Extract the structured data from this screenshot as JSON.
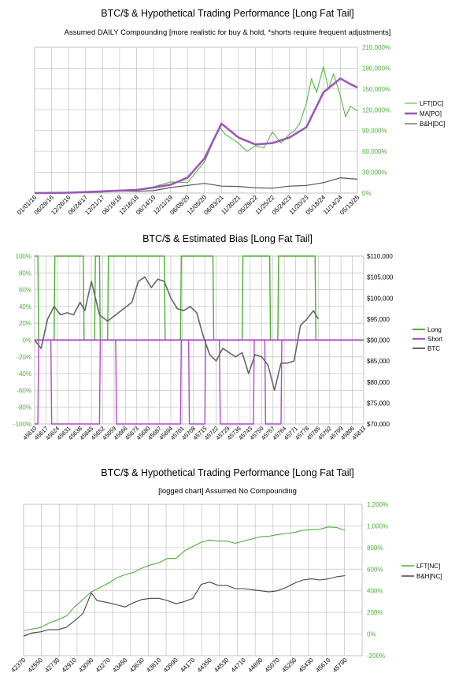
{
  "charts": [
    {
      "title": "BTC/$ & Hypothetical Trading Performance [Long Fat Tail]",
      "subtitle": "Assumed DAILY Compounding [more realistic for buy & hold, *shorts require frequent adjustments]"
    },
    {
      "title": "BTC/$ & Estimated Bias [Long Fat Tail]",
      "subtitle": ""
    },
    {
      "title": "BTC/$ & Hypothetical Trading Performance [Long Fat Tail]",
      "subtitle": "[logged chart] Assumed No Compounding"
    }
  ],
  "chart_data": [
    {
      "type": "line",
      "x_tick_labels": [
        "01/01/16",
        "06/29/16",
        "12/26/16",
        "06/24/17",
        "12/21/17",
        "06/19/18",
        "12/16/18",
        "06/14/19",
        "12/11/19",
        "06/08/20",
        "12/05/20",
        "06/03/21",
        "11/30/21",
        "05/29/22",
        "11/25/22",
        "05/24/23",
        "11/20/23",
        "05/18/24",
        "11/14/24",
        "05/13/25"
      ],
      "y_tick_labels": [
        "0%",
        "30,000%",
        "60,000%",
        "90,000%",
        "120,000%",
        "150,000%",
        "180,000%",
        "210,000%"
      ],
      "ylim": [
        0,
        210000
      ],
      "grid": true,
      "legend_position": "right",
      "colors": {
        "LFT[DC]": "#4caf35",
        "MA[PO]": "#9b59b6",
        "B&H[DC]": "#555555",
        "axis_text": "#4caf35"
      },
      "series": [
        {
          "name": "LFT[DC]",
          "x": [
            0,
            2,
            4,
            6,
            7,
            8,
            9,
            9.5,
            10,
            10.3,
            10.6,
            10.9,
            11.2,
            11.5,
            12,
            12.5,
            13,
            13.5,
            14,
            14.5,
            15,
            15.3,
            15.6,
            16,
            16.3,
            16.6,
            17,
            17.3,
            17.6,
            18,
            18.3,
            18.6,
            19
          ],
          "values": [
            0,
            800,
            3000,
            5000,
            9000,
            16000,
            15000,
            30000,
            45000,
            62000,
            80000,
            95000,
            85000,
            80000,
            72000,
            60000,
            68000,
            65000,
            88000,
            72000,
            85000,
            90000,
            100000,
            130000,
            165000,
            145000,
            182000,
            150000,
            172000,
            140000,
            110000,
            125000,
            118000
          ]
        },
        {
          "name": "MA[PO]",
          "x": [
            0,
            2,
            4,
            6,
            7,
            8,
            9,
            10,
            11,
            12,
            13,
            14,
            15,
            16,
            17,
            18,
            18.5,
            19
          ],
          "values": [
            0,
            500,
            2500,
            4500,
            8000,
            12000,
            22000,
            50000,
            100000,
            80000,
            70000,
            72000,
            80000,
            95000,
            145000,
            165000,
            158000,
            152000
          ]
        },
        {
          "name": "B&H[DC]",
          "x": [
            0,
            2,
            4,
            5,
            6,
            7,
            8,
            9,
            10,
            11,
            12,
            13,
            14,
            15,
            16,
            17,
            18,
            19
          ],
          "values": [
            0,
            400,
            1500,
            3000,
            2500,
            3500,
            8000,
            11000,
            14000,
            10000,
            9500,
            7500,
            7000,
            10000,
            11000,
            15000,
            22000,
            20000
          ]
        }
      ]
    },
    {
      "type": "line",
      "x_tick_labels": [
        "45610",
        "45617",
        "45624",
        "45631",
        "45638",
        "45645",
        "45652",
        "45659",
        "45666",
        "45673",
        "45680",
        "45687",
        "45694",
        "45701",
        "45708",
        "45715",
        "45722",
        "45729",
        "45736",
        "45743",
        "45750",
        "45757",
        "45764",
        "45771",
        "45778",
        "45785",
        "45792",
        "45799",
        "45806",
        "45813"
      ],
      "y_left_tick_labels": [
        "-100%",
        "-80%",
        "-60%",
        "-40%",
        "-20%",
        "0%",
        "20%",
        "40%",
        "60%",
        "80%",
        "100%"
      ],
      "y_right_tick_labels": [
        "$70,000",
        "$75,000",
        "$80,000",
        "$85,000",
        "$90,000",
        "$95,000",
        "$100,000",
        "$105,000",
        "$110,000"
      ],
      "ylim_left": [
        -100,
        100
      ],
      "ylim_right": [
        70000,
        110000
      ],
      "grid": true,
      "legend_position": "right",
      "colors": {
        "Long": "#4caf35",
        "Short": "#b04bc8",
        "BTC": "#666666"
      },
      "series": [
        {
          "name": "Long",
          "x": [
            45610,
            45612,
            45612.5,
            45622,
            45622.5,
            45640,
            45640.5,
            45647,
            45647.5,
            45650,
            45650.5,
            45655,
            45655.5,
            45690,
            45690.5,
            45700,
            45700.5,
            45720,
            45720.5,
            45738,
            45738.5,
            45755,
            45755.5,
            45760,
            45760.5,
            45783,
            45783.5,
            45813
          ],
          "values": [
            100,
            100,
            0,
            0,
            100,
            100,
            0,
            0,
            100,
            100,
            0,
            0,
            100,
            100,
            0,
            0,
            100,
            100,
            0,
            0,
            100,
            100,
            0,
            0,
            100,
            100,
            0,
            0
          ]
        },
        {
          "name": "Short",
          "x": [
            45610,
            45612,
            45612.5,
            45620,
            45620.5,
            45650,
            45650.5,
            45660,
            45660.5,
            45700,
            45700.5,
            45705,
            45705.5,
            45715,
            45715.5,
            45724,
            45724.5,
            45745,
            45745.5,
            45752,
            45752.5,
            45762,
            45762.5,
            45783,
            45783.5,
            45813
          ],
          "values": [
            -100,
            -100,
            0,
            0,
            -100,
            -100,
            0,
            0,
            -100,
            -100,
            0,
            0,
            -100,
            -100,
            0,
            0,
            -100,
            -100,
            0,
            0,
            -100,
            -100,
            0,
            0,
            0,
            0
          ]
        },
        {
          "name": "BTC",
          "x": [
            45610,
            45614,
            45618,
            45622,
            45626,
            45630,
            45634,
            45638,
            45641,
            45645,
            45650,
            45655,
            45660,
            45665,
            45670,
            45674,
            45678,
            45682,
            45686,
            45690,
            45694,
            45698,
            45702,
            45706,
            45710,
            45714,
            45718,
            45722,
            45726,
            45730,
            45734,
            45738,
            45742,
            45746,
            45750,
            45754,
            45758,
            45762,
            45766,
            45770,
            45774,
            45778,
            45782,
            45785
          ],
          "values": [
            90000,
            88000,
            95000,
            98000,
            96000,
            96500,
            96000,
            99000,
            97000,
            104000,
            96000,
            94500,
            96000,
            97500,
            99000,
            104000,
            105000,
            102500,
            104500,
            104000,
            100000,
            97500,
            97000,
            98000,
            96500,
            91000,
            86500,
            85000,
            88000,
            87000,
            86000,
            87000,
            82000,
            86500,
            86000,
            84000,
            78000,
            84500,
            84500,
            85000,
            93500,
            95000,
            97000,
            95000
          ]
        }
      ]
    },
    {
      "type": "line",
      "x_tick_labels": [
        "42370",
        "42550",
        "42730",
        "42910",
        "43090",
        "43270",
        "43450",
        "43630",
        "43810",
        "43990",
        "44170",
        "44350",
        "44530",
        "44710",
        "44890",
        "45070",
        "45250",
        "45430",
        "45610",
        "45790"
      ],
      "y_tick_labels": [
        "-200%",
        "0%",
        "200%",
        "400%",
        "600%",
        "800%",
        "1,000%",
        "1,200%"
      ],
      "ylim": [
        -200,
        1200
      ],
      "grid": true,
      "legend_position": "right",
      "colors": {
        "LFT[NC]": "#4caf35",
        "B&H[NC]": "#444444"
      },
      "series": [
        {
          "name": "LFT[NC]",
          "x": [
            42370,
            42450,
            42550,
            42650,
            42730,
            42830,
            42910,
            43000,
            43090,
            43180,
            43270,
            43360,
            43450,
            43540,
            43630,
            43720,
            43810,
            43900,
            43990,
            44080,
            44170,
            44260,
            44350,
            44440,
            44530,
            44620,
            44710,
            44800,
            44890,
            44980,
            45070,
            45160,
            45250,
            45340,
            45430,
            45520,
            45610,
            45700,
            45790
          ],
          "values": [
            30,
            45,
            60,
            105,
            130,
            170,
            250,
            320,
            390,
            430,
            470,
            520,
            550,
            570,
            610,
            640,
            660,
            700,
            700,
            770,
            810,
            850,
            870,
            860,
            860,
            840,
            860,
            880,
            900,
            905,
            920,
            930,
            940,
            960,
            965,
            970,
            990,
            985,
            960
          ]
        },
        {
          "name": "B&H[NC]",
          "x": [
            42370,
            42460,
            42550,
            42640,
            42730,
            42820,
            42910,
            43000,
            43090,
            43150,
            43270,
            43360,
            43450,
            43540,
            43630,
            43720,
            43810,
            43900,
            43990,
            44080,
            44170,
            44260,
            44350,
            44440,
            44530,
            44620,
            44710,
            44800,
            44890,
            44980,
            45070,
            45160,
            45250,
            45340,
            45430,
            45520,
            45610,
            45700,
            45790
          ],
          "values": [
            -20,
            10,
            20,
            40,
            40,
            60,
            120,
            190,
            380,
            310,
            290,
            270,
            250,
            290,
            320,
            330,
            330,
            310,
            280,
            300,
            330,
            460,
            480,
            450,
            450,
            420,
            420,
            410,
            400,
            390,
            400,
            430,
            470,
            500,
            510,
            500,
            510,
            530,
            540
          ]
        }
      ]
    }
  ]
}
